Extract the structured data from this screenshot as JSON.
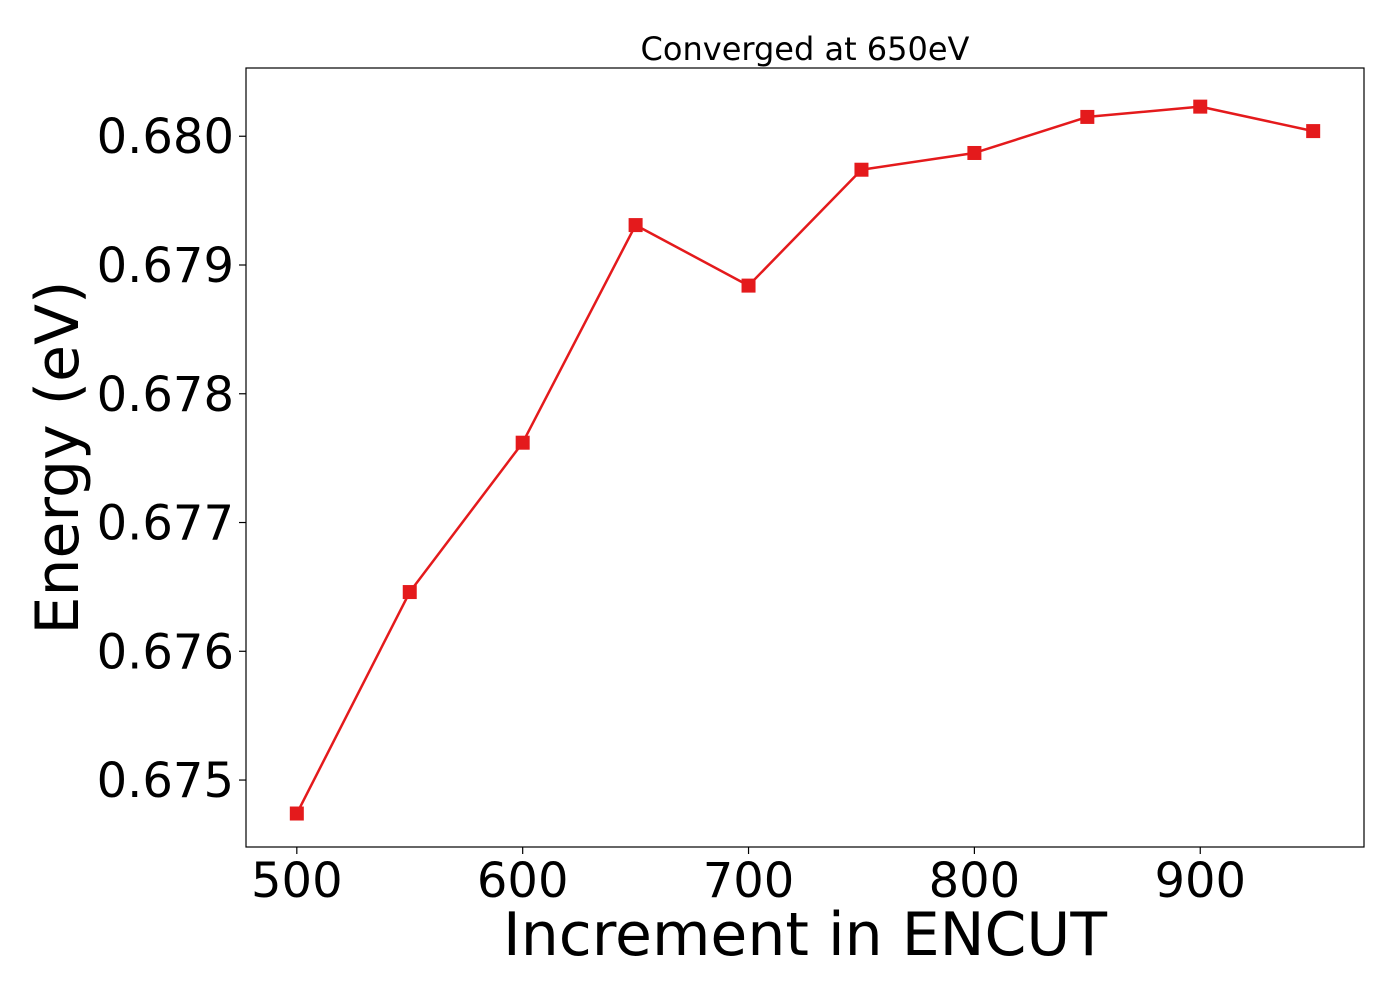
{
  "chart_data": {
    "type": "line",
    "title": "Converged at 650eV",
    "xlabel": "Increment in ENCUT",
    "ylabel": "Energy (eV)",
    "x": [
      500,
      550,
      600,
      650,
      700,
      750,
      800,
      850,
      900,
      950
    ],
    "series": [
      {
        "values": [
          0.67474,
          0.67646,
          0.67762,
          0.67931,
          0.67884,
          0.67974,
          0.67987,
          0.68015,
          0.68023,
          0.68004
        ],
        "color": "#e41a1c",
        "marker": "square"
      }
    ],
    "xlim": [
      477.5,
      972.5
    ],
    "ylim": [
      0.67448,
      0.68053
    ],
    "xticks": [
      500,
      600,
      700,
      800,
      900
    ],
    "yticks": [
      0.675,
      0.676,
      0.677,
      0.678,
      0.679,
      0.68
    ],
    "xtick_labels": [
      "500",
      "600",
      "700",
      "800",
      "900"
    ],
    "ytick_labels": [
      "0.675",
      "0.676",
      "0.677",
      "0.678",
      "0.679",
      "0.680"
    ],
    "grid": false,
    "legend": false
  }
}
